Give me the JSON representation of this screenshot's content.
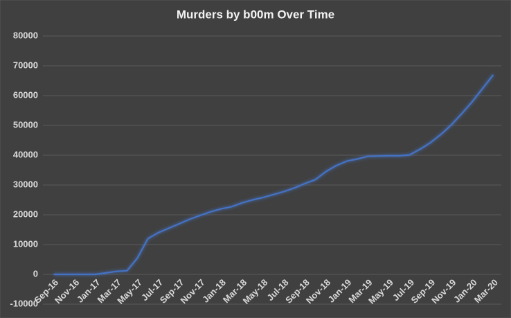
{
  "chart_data": {
    "type": "line",
    "title": "Murders by b00m Over Time",
    "categories": [
      "Sep-16",
      null,
      "Nov-16",
      null,
      "Jan-17",
      null,
      "Mar-17",
      null,
      "May-17",
      null,
      "Jul-17",
      null,
      "Sep-17",
      null,
      "Nov-17",
      null,
      "Jan-18",
      null,
      "Mar-18",
      null,
      "May-18",
      null,
      "Jul-18",
      null,
      "Sep-18",
      null,
      "Nov-18",
      null,
      "Jan-19",
      null,
      "Mar-19",
      null,
      "May-19",
      null,
      "Jul-19",
      null,
      "Sep-19",
      null,
      "Nov-19",
      null,
      "Jan-20",
      null,
      "Mar-20"
    ],
    "values": [
      0,
      0,
      0,
      0,
      0,
      500,
      1000,
      1200,
      5500,
      12000,
      14000,
      15500,
      17000,
      18500,
      19800,
      21000,
      22000,
      22700,
      24000,
      25000,
      25800,
      26800,
      27800,
      29000,
      30500,
      31800,
      34500,
      36500,
      38000,
      38700,
      39600,
      39700,
      39800,
      39800,
      40100,
      42000,
      44200,
      47000,
      50200,
      54000,
      58000,
      62500,
      67000
    ],
    "color": "#4472c4",
    "ylim": [
      -10000,
      80000
    ],
    "yticks": [
      -10000,
      0,
      10000,
      20000,
      30000,
      40000,
      50000,
      60000,
      70000,
      80000
    ],
    "grid": true
  }
}
